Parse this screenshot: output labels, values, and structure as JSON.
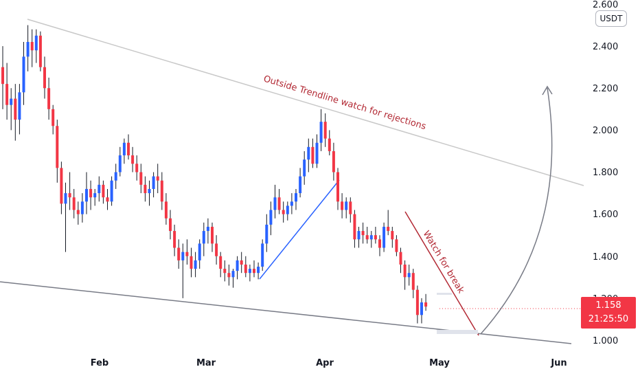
{
  "chart_data": {
    "type": "candlestick",
    "unit_label": "USDT",
    "y_ticks": [
      "1.000",
      "1.200",
      "1.400",
      "1.600",
      "1.800",
      "2.000",
      "2.200",
      "2.400",
      "2.600"
    ],
    "x_ticks": [
      "Feb",
      "Mar",
      "Apr",
      "May",
      "Jun"
    ],
    "ylim": [
      1.0,
      2.6
    ],
    "current_price": "1.158",
    "countdown": "21:25:50",
    "colors": {
      "up": "#2962ff",
      "down": "#f23645",
      "trendline_upper": "#c8c8c8",
      "trendline_lower": "#787b86",
      "annotation": "#b22833",
      "support": "#2962ff",
      "arrow": "#787b86"
    },
    "annotations": {
      "upper": "Outside Trendline watch for rejections",
      "break": "Watch for break"
    },
    "candles": [
      [
        2.3,
        2.4,
        2.1,
        2.22
      ],
      [
        2.22,
        2.32,
        2.05,
        2.12
      ],
      [
        2.12,
        2.2,
        2.0,
        2.15
      ],
      [
        2.15,
        2.22,
        1.95,
        2.05
      ],
      [
        2.05,
        2.22,
        1.98,
        2.18
      ],
      [
        2.18,
        2.42,
        2.12,
        2.35
      ],
      [
        2.35,
        2.5,
        2.28,
        2.42
      ],
      [
        2.42,
        2.48,
        2.3,
        2.38
      ],
      [
        2.38,
        2.48,
        2.32,
        2.45
      ],
      [
        2.45,
        2.47,
        2.28,
        2.3
      ],
      [
        2.3,
        2.35,
        2.15,
        2.2
      ],
      [
        2.2,
        2.25,
        2.05,
        2.1
      ],
      [
        2.1,
        2.12,
        1.98,
        2.02
      ],
      [
        2.02,
        2.05,
        1.75,
        1.82
      ],
      [
        1.82,
        1.85,
        1.6,
        1.65
      ],
      [
        1.65,
        1.75,
        1.42,
        1.7
      ],
      [
        1.7,
        1.8,
        1.62,
        1.68
      ],
      [
        1.68,
        1.72,
        1.58,
        1.62
      ],
      [
        1.62,
        1.66,
        1.55,
        1.6
      ],
      [
        1.6,
        1.7,
        1.56,
        1.66
      ],
      [
        1.66,
        1.8,
        1.6,
        1.72
      ],
      [
        1.72,
        1.76,
        1.62,
        1.68
      ],
      [
        1.68,
        1.72,
        1.64,
        1.7
      ],
      [
        1.7,
        1.78,
        1.66,
        1.74
      ],
      [
        1.74,
        1.76,
        1.65,
        1.68
      ],
      [
        1.68,
        1.72,
        1.62,
        1.66
      ],
      [
        1.66,
        1.78,
        1.64,
        1.76
      ],
      [
        1.76,
        1.84,
        1.72,
        1.8
      ],
      [
        1.8,
        1.92,
        1.78,
        1.88
      ],
      [
        1.88,
        1.96,
        1.84,
        1.94
      ],
      [
        1.94,
        1.98,
        1.86,
        1.88
      ],
      [
        1.88,
        1.92,
        1.8,
        1.84
      ],
      [
        1.84,
        1.88,
        1.76,
        1.8
      ],
      [
        1.8,
        1.84,
        1.7,
        1.74
      ],
      [
        1.74,
        1.78,
        1.66,
        1.7
      ],
      [
        1.7,
        1.76,
        1.64,
        1.72
      ],
      [
        1.72,
        1.8,
        1.68,
        1.78
      ],
      [
        1.78,
        1.84,
        1.7,
        1.76
      ],
      [
        1.76,
        1.8,
        1.62,
        1.66
      ],
      [
        1.66,
        1.7,
        1.55,
        1.58
      ],
      [
        1.58,
        1.62,
        1.48,
        1.52
      ],
      [
        1.52,
        1.55,
        1.4,
        1.44
      ],
      [
        1.44,
        1.48,
        1.34,
        1.38
      ],
      [
        1.38,
        1.46,
        1.2,
        1.42
      ],
      [
        1.42,
        1.48,
        1.36,
        1.4
      ],
      [
        1.4,
        1.44,
        1.3,
        1.34
      ],
      [
        1.34,
        1.42,
        1.3,
        1.38
      ],
      [
        1.38,
        1.48,
        1.34,
        1.46
      ],
      [
        1.46,
        1.56,
        1.4,
        1.52
      ],
      [
        1.52,
        1.58,
        1.46,
        1.54
      ],
      [
        1.54,
        1.56,
        1.42,
        1.46
      ],
      [
        1.46,
        1.5,
        1.36,
        1.4
      ],
      [
        1.4,
        1.42,
        1.3,
        1.34
      ],
      [
        1.34,
        1.38,
        1.28,
        1.32
      ],
      [
        1.32,
        1.36,
        1.26,
        1.3
      ],
      [
        1.3,
        1.34,
        1.25,
        1.33
      ],
      [
        1.33,
        1.4,
        1.29,
        1.38
      ],
      [
        1.38,
        1.42,
        1.32,
        1.36
      ],
      [
        1.36,
        1.4,
        1.3,
        1.32
      ],
      [
        1.32,
        1.36,
        1.28,
        1.34
      ],
      [
        1.34,
        1.38,
        1.3,
        1.32
      ],
      [
        1.32,
        1.37,
        1.29,
        1.35
      ],
      [
        1.35,
        1.48,
        1.33,
        1.46
      ],
      [
        1.46,
        1.6,
        1.42,
        1.55
      ],
      [
        1.55,
        1.66,
        1.5,
        1.62
      ],
      [
        1.62,
        1.74,
        1.58,
        1.68
      ],
      [
        1.68,
        1.72,
        1.6,
        1.62
      ],
      [
        1.62,
        1.66,
        1.56,
        1.6
      ],
      [
        1.6,
        1.66,
        1.57,
        1.64
      ],
      [
        1.64,
        1.7,
        1.6,
        1.66
      ],
      [
        1.66,
        1.72,
        1.62,
        1.7
      ],
      [
        1.7,
        1.82,
        1.68,
        1.78
      ],
      [
        1.78,
        1.9,
        1.74,
        1.86
      ],
      [
        1.86,
        1.96,
        1.8,
        1.92
      ],
      [
        1.92,
        1.96,
        1.82,
        1.84
      ],
      [
        1.84,
        1.98,
        1.82,
        1.94
      ],
      [
        1.94,
        2.1,
        1.9,
        2.04
      ],
      [
        2.04,
        2.08,
        1.92,
        1.96
      ],
      [
        1.96,
        2.0,
        1.88,
        1.9
      ],
      [
        1.9,
        1.94,
        1.76,
        1.8
      ],
      [
        1.8,
        1.82,
        1.62,
        1.66
      ],
      [
        1.66,
        1.7,
        1.58,
        1.62
      ],
      [
        1.62,
        1.68,
        1.58,
        1.66
      ],
      [
        1.66,
        1.68,
        1.56,
        1.6
      ],
      [
        1.6,
        1.62,
        1.44,
        1.48
      ],
      [
        1.48,
        1.54,
        1.44,
        1.52
      ],
      [
        1.52,
        1.56,
        1.46,
        1.5
      ],
      [
        1.5,
        1.54,
        1.46,
        1.48
      ],
      [
        1.48,
        1.52,
        1.44,
        1.5
      ],
      [
        1.5,
        1.54,
        1.46,
        1.48
      ],
      [
        1.48,
        1.5,
        1.4,
        1.44
      ],
      [
        1.44,
        1.56,
        1.42,
        1.54
      ],
      [
        1.54,
        1.62,
        1.5,
        1.52
      ],
      [
        1.52,
        1.54,
        1.44,
        1.48
      ],
      [
        1.48,
        1.5,
        1.4,
        1.42
      ],
      [
        1.42,
        1.44,
        1.32,
        1.36
      ],
      [
        1.36,
        1.38,
        1.24,
        1.3
      ],
      [
        1.3,
        1.36,
        1.26,
        1.32
      ],
      [
        1.32,
        1.34,
        1.2,
        1.24
      ],
      [
        1.24,
        1.26,
        1.08,
        1.12
      ],
      [
        1.12,
        1.2,
        1.08,
        1.18
      ],
      [
        1.18,
        1.22,
        1.14,
        1.16
      ]
    ]
  }
}
